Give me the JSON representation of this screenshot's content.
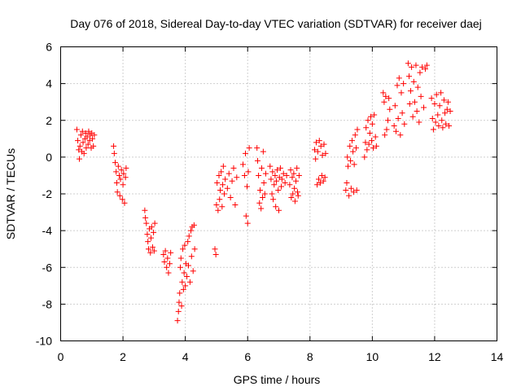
{
  "chart_data": {
    "type": "scatter",
    "title": "Day 076 of 2018, Sidereal Day-to-day VTEC variation (SDTVAR) for receiver daej",
    "xlabel": "GPS time / hours",
    "ylabel": "SDTVAR / TECUs",
    "xlim": [
      0,
      14
    ],
    "ylim": [
      -10,
      6
    ],
    "xticks": [
      0,
      2,
      4,
      6,
      8,
      10,
      12,
      14
    ],
    "yticks": [
      -10,
      -8,
      -6,
      -4,
      -2,
      0,
      2,
      4,
      6
    ],
    "grid": true,
    "marker": "plus",
    "color": "#ff0000",
    "series": [
      {
        "name": "SDTVAR",
        "points": [
          [
            0.52,
            1.5
          ],
          [
            0.55,
            0.9
          ],
          [
            0.58,
            0.4
          ],
          [
            0.6,
            -0.1
          ],
          [
            0.62,
            0.6
          ],
          [
            0.65,
            1.2
          ],
          [
            0.68,
            0.3
          ],
          [
            0.7,
            1.4
          ],
          [
            0.72,
            0.8
          ],
          [
            0.75,
            0.2
          ],
          [
            0.78,
            1.0
          ],
          [
            0.8,
            1.3
          ],
          [
            0.82,
            0.5
          ],
          [
            0.85,
            1.1
          ],
          [
            0.88,
            0.7
          ],
          [
            0.9,
            1.4
          ],
          [
            0.93,
            0.9
          ],
          [
            0.95,
            1.2
          ],
          [
            0.98,
            0.5
          ],
          [
            1.0,
            1.3
          ],
          [
            1.02,
            1.0
          ],
          [
            1.05,
            0.6
          ],
          [
            1.08,
            1.2
          ],
          [
            1.7,
            0.6
          ],
          [
            1.72,
            0.2
          ],
          [
            1.75,
            -0.3
          ],
          [
            1.78,
            -0.8
          ],
          [
            1.8,
            -1.4
          ],
          [
            1.82,
            -1.9
          ],
          [
            1.85,
            -0.5
          ],
          [
            1.88,
            -1.0
          ],
          [
            1.9,
            -2.1
          ],
          [
            1.92,
            -1.2
          ],
          [
            1.95,
            -0.7
          ],
          [
            1.98,
            -2.3
          ],
          [
            2.0,
            -1.5
          ],
          [
            2.02,
            -0.9
          ],
          [
            2.05,
            -2.5
          ],
          [
            2.08,
            -1.1
          ],
          [
            2.1,
            -0.6
          ],
          [
            2.7,
            -2.9
          ],
          [
            2.72,
            -3.3
          ],
          [
            2.75,
            -3.6
          ],
          [
            2.78,
            -4.2
          ],
          [
            2.8,
            -4.6
          ],
          [
            2.82,
            -5.0
          ],
          [
            2.85,
            -3.9
          ],
          [
            2.88,
            -5.2
          ],
          [
            2.9,
            -4.4
          ],
          [
            2.92,
            -3.8
          ],
          [
            2.95,
            -4.9
          ],
          [
            2.98,
            -4.1
          ],
          [
            3.0,
            -5.1
          ],
          [
            3.02,
            -3.6
          ],
          [
            3.3,
            -5.3
          ],
          [
            3.33,
            -5.7
          ],
          [
            3.36,
            -5.1
          ],
          [
            3.4,
            -6.0
          ],
          [
            3.43,
            -5.5
          ],
          [
            3.46,
            -6.3
          ],
          [
            3.5,
            -5.8
          ],
          [
            3.53,
            -5.2
          ],
          [
            3.75,
            -8.9
          ],
          [
            3.78,
            -8.4
          ],
          [
            3.8,
            -7.9
          ],
          [
            3.82,
            -7.4
          ],
          [
            3.84,
            -6.0
          ],
          [
            3.86,
            -5.5
          ],
          [
            3.88,
            -8.1
          ],
          [
            3.9,
            -6.8
          ],
          [
            3.92,
            -5.0
          ],
          [
            3.94,
            -7.2
          ],
          [
            3.96,
            -6.3
          ],
          [
            3.98,
            -4.8
          ],
          [
            4.0,
            -7.0
          ],
          [
            4.02,
            -5.8
          ],
          [
            4.05,
            -6.5
          ],
          [
            4.08,
            -4.6
          ],
          [
            4.1,
            -5.9
          ],
          [
            4.12,
            -4.3
          ],
          [
            4.15,
            -6.8
          ],
          [
            4.18,
            -4.0
          ],
          [
            4.2,
            -5.4
          ],
          [
            4.22,
            -3.8
          ],
          [
            4.25,
            -6.2
          ],
          [
            4.28,
            -3.7
          ],
          [
            4.3,
            -5.0
          ],
          [
            4.95,
            -5.0
          ],
          [
            4.98,
            -5.3
          ],
          [
            5.0,
            -2.6
          ],
          [
            5.02,
            -1.4
          ],
          [
            5.05,
            -2.9
          ],
          [
            5.08,
            -1.0
          ],
          [
            5.1,
            -2.3
          ],
          [
            5.12,
            -1.8
          ],
          [
            5.15,
            -0.8
          ],
          [
            5.18,
            -2.7
          ],
          [
            5.2,
            -1.5
          ],
          [
            5.22,
            -0.5
          ],
          [
            5.25,
            -2.0
          ],
          [
            5.28,
            -1.2
          ],
          [
            5.35,
            -1.7
          ],
          [
            5.4,
            -0.9
          ],
          [
            5.45,
            -2.2
          ],
          [
            5.5,
            -1.3
          ],
          [
            5.55,
            -0.6
          ],
          [
            5.6,
            -2.6
          ],
          [
            5.65,
            -1.1
          ],
          [
            5.85,
            -0.4
          ],
          [
            5.9,
            -1.0
          ],
          [
            5.93,
            0.2
          ],
          [
            5.95,
            -3.2
          ],
          [
            5.98,
            -1.6
          ],
          [
            6.0,
            -3.6
          ],
          [
            6.02,
            -0.8
          ],
          [
            6.05,
            0.5
          ],
          [
            6.3,
            0.5
          ],
          [
            6.32,
            -0.2
          ],
          [
            6.35,
            -1.0
          ],
          [
            6.38,
            -2.5
          ],
          [
            6.4,
            -1.8
          ],
          [
            6.43,
            -2.8
          ],
          [
            6.45,
            -0.6
          ],
          [
            6.48,
            -2.2
          ],
          [
            6.5,
            0.3
          ],
          [
            6.52,
            -1.4
          ],
          [
            6.55,
            -2.0
          ],
          [
            6.58,
            -0.9
          ],
          [
            6.72,
            -0.5
          ],
          [
            6.75,
            -1.2
          ],
          [
            6.78,
            -2.0
          ],
          [
            6.8,
            -0.8
          ],
          [
            6.82,
            -2.3
          ],
          [
            6.85,
            -1.5
          ],
          [
            6.88,
            -1.0
          ],
          [
            6.9,
            -2.7
          ],
          [
            6.92,
            -1.3
          ],
          [
            6.95,
            -0.7
          ],
          [
            6.98,
            -1.8
          ],
          [
            7.0,
            -2.9
          ],
          [
            7.02,
            -1.1
          ],
          [
            7.05,
            -0.6
          ],
          [
            7.08,
            -1.6
          ],
          [
            7.1,
            -1.2
          ],
          [
            7.15,
            -0.9
          ],
          [
            7.2,
            -1.4
          ],
          [
            7.25,
            -1.0
          ],
          [
            7.35,
            -1.5
          ],
          [
            7.38,
            -0.7
          ],
          [
            7.4,
            -2.2
          ],
          [
            7.43,
            -1.1
          ],
          [
            7.45,
            -2.0
          ],
          [
            7.48,
            -0.9
          ],
          [
            7.5,
            -1.7
          ],
          [
            7.52,
            -2.4
          ],
          [
            7.55,
            -1.3
          ],
          [
            7.58,
            -0.6
          ],
          [
            7.6,
            -1.9
          ],
          [
            7.62,
            -2.1
          ],
          [
            7.65,
            -1.0
          ],
          [
            8.15,
            0.4
          ],
          [
            8.18,
            -0.1
          ],
          [
            8.2,
            0.8
          ],
          [
            8.23,
            -1.5
          ],
          [
            8.25,
            0.3
          ],
          [
            8.28,
            -1.2
          ],
          [
            8.3,
            0.9
          ],
          [
            8.33,
            -1.4
          ],
          [
            8.35,
            0.6
          ],
          [
            8.38,
            -1.0
          ],
          [
            8.4,
            0.1
          ],
          [
            8.43,
            -1.3
          ],
          [
            8.45,
            0.7
          ],
          [
            8.48,
            -1.1
          ],
          [
            8.5,
            0.2
          ],
          [
            9.15,
            -1.8
          ],
          [
            9.18,
            -1.4
          ],
          [
            9.2,
            0.0
          ],
          [
            9.22,
            -0.5
          ],
          [
            9.25,
            -2.1
          ],
          [
            9.28,
            0.6
          ],
          [
            9.3,
            -0.2
          ],
          [
            9.32,
            -1.7
          ],
          [
            9.35,
            0.9
          ],
          [
            9.38,
            0.3
          ],
          [
            9.4,
            -1.9
          ],
          [
            9.42,
            -0.4
          ],
          [
            9.45,
            1.2
          ],
          [
            9.48,
            0.5
          ],
          [
            9.5,
            -1.8
          ],
          [
            9.52,
            1.5
          ],
          [
            9.75,
            0.0
          ],
          [
            9.78,
            0.8
          ],
          [
            9.8,
            1.6
          ],
          [
            9.83,
            0.4
          ],
          [
            9.86,
            2.0
          ],
          [
            9.89,
            0.7
          ],
          [
            9.92,
            1.3
          ],
          [
            9.95,
            2.2
          ],
          [
            9.98,
            0.9
          ],
          [
            10.0,
            1.8
          ],
          [
            10.03,
            0.5
          ],
          [
            10.06,
            2.3
          ],
          [
            10.1,
            1.1
          ],
          [
            10.13,
            0.6
          ],
          [
            10.35,
            3.5
          ],
          [
            10.38,
            3.0
          ],
          [
            10.4,
            1.2
          ],
          [
            10.43,
            3.3
          ],
          [
            10.46,
            1.5
          ],
          [
            10.5,
            2.0
          ],
          [
            10.53,
            3.2
          ],
          [
            10.56,
            2.6
          ],
          [
            10.7,
            1.7
          ],
          [
            10.73,
            2.8
          ],
          [
            10.76,
            1.4
          ],
          [
            10.8,
            3.9
          ],
          [
            10.83,
            2.1
          ],
          [
            10.86,
            4.3
          ],
          [
            10.9,
            1.2
          ],
          [
            10.93,
            3.5
          ],
          [
            10.96,
            2.4
          ],
          [
            11.0,
            4.0
          ],
          [
            11.03,
            1.8
          ],
          [
            11.15,
            5.1
          ],
          [
            11.18,
            4.4
          ],
          [
            11.2,
            2.9
          ],
          [
            11.23,
            3.6
          ],
          [
            11.26,
            4.9
          ],
          [
            11.3,
            2.2
          ],
          [
            11.33,
            4.1
          ],
          [
            11.36,
            3.0
          ],
          [
            11.4,
            5.0
          ],
          [
            11.43,
            2.5
          ],
          [
            11.46,
            3.8
          ],
          [
            11.5,
            1.9
          ],
          [
            11.53,
            4.6
          ],
          [
            11.56,
            3.3
          ],
          [
            11.6,
            4.9
          ],
          [
            11.65,
            2.7
          ],
          [
            11.7,
            4.8
          ],
          [
            11.75,
            5.0
          ],
          [
            11.9,
            3.2
          ],
          [
            11.93,
            2.1
          ],
          [
            11.96,
            1.5
          ],
          [
            12.0,
            2.9
          ],
          [
            12.03,
            1.9
          ],
          [
            12.06,
            3.4
          ],
          [
            12.1,
            2.3
          ],
          [
            12.13,
            1.7
          ],
          [
            12.16,
            2.8
          ],
          [
            12.2,
            3.5
          ],
          [
            12.23,
            2.0
          ],
          [
            12.26,
            1.6
          ],
          [
            12.3,
            3.1
          ],
          [
            12.33,
            2.4
          ],
          [
            12.36,
            1.8
          ],
          [
            12.4,
            2.6
          ],
          [
            12.43,
            3.0
          ],
          [
            12.46,
            1.7
          ],
          [
            12.5,
            2.5
          ]
        ]
      }
    ]
  }
}
